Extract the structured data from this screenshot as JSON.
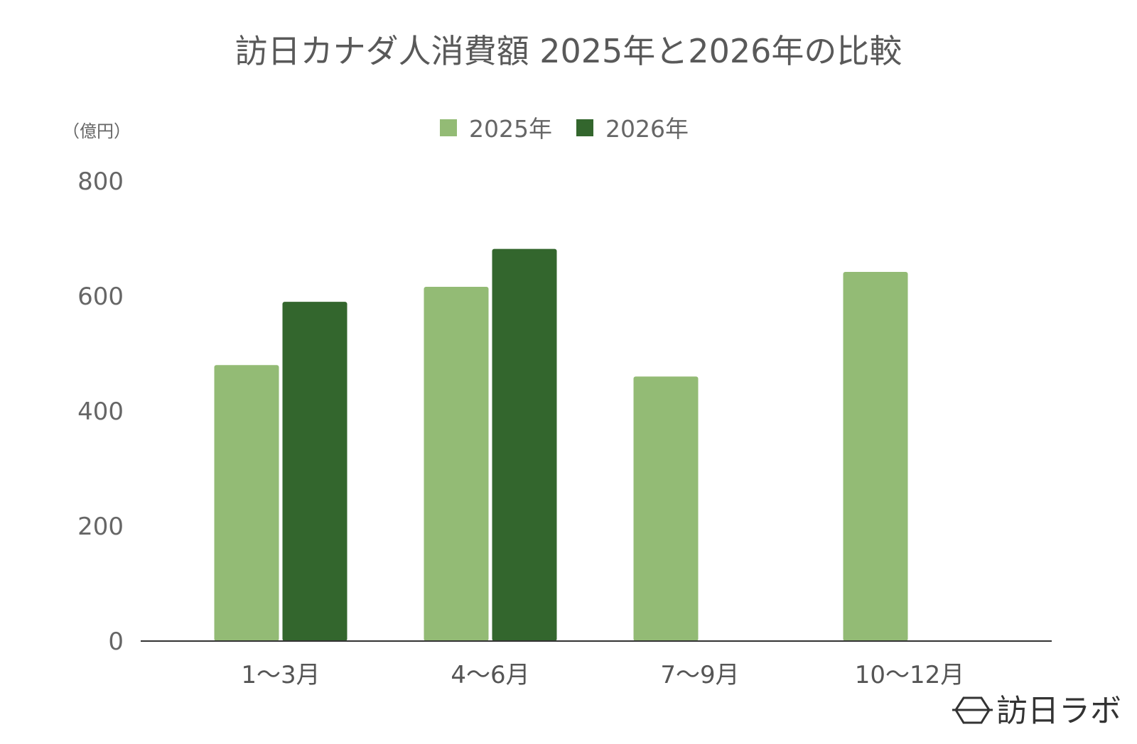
{
  "chart_data": {
    "type": "bar",
    "title": "訪日カナダ人消費額 2025年と2026年の比較",
    "ylabel": "（億円）",
    "xlabel": "",
    "categories": [
      "1〜3月",
      "4〜6月",
      "7〜9月",
      "10〜12月"
    ],
    "series": [
      {
        "name": "2025年",
        "color": "#93bb75",
        "values": [
          480,
          616,
          460,
          642
        ]
      },
      {
        "name": "2026年",
        "color": "#33662d",
        "values": [
          590,
          682,
          null,
          null
        ]
      }
    ],
    "ylim": [
      0,
      800
    ],
    "yticks": [
      0,
      200,
      400,
      600,
      800
    ],
    "grid": false,
    "legend_position": "top-center"
  },
  "branding": {
    "logo_text": "訪日ラボ",
    "logo_icon": "hexagon-logo-icon"
  }
}
